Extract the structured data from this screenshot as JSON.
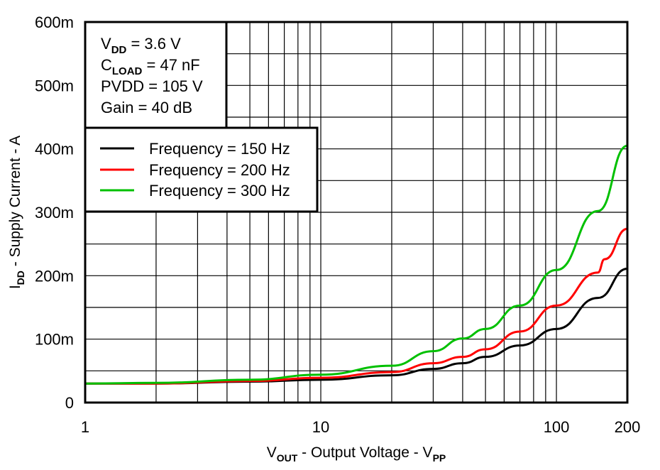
{
  "chart_data": {
    "type": "line",
    "xlabel": {
      "main": "V",
      "sub": "OUT",
      "rest": " - Output Voltage - V",
      "sub2": "PP"
    },
    "ylabel": {
      "main": "I",
      "sub": "DD",
      "rest": " - Supply Current - A"
    },
    "xscale": "log",
    "xlim": [
      1,
      200
    ],
    "ylim": [
      0,
      0.6
    ],
    "x_ticks": [
      {
        "v": 1,
        "label": "1"
      },
      {
        "v": 10,
        "label": "10"
      },
      {
        "v": 100,
        "label": "100"
      },
      {
        "v": 200,
        "label": "200"
      }
    ],
    "y_ticks": [
      {
        "v": 0,
        "label": "0"
      },
      {
        "v": 0.1,
        "label": "100m"
      },
      {
        "v": 0.2,
        "label": "200m"
      },
      {
        "v": 0.3,
        "label": "300m"
      },
      {
        "v": 0.4,
        "label": "400m"
      },
      {
        "v": 0.5,
        "label": "500m"
      },
      {
        "v": 0.6,
        "label": "600m"
      }
    ],
    "grid": true,
    "legend_position": "top-left",
    "conditions": [
      {
        "main": "V",
        "sub": "DD",
        "rest": " = 3.6 V"
      },
      {
        "main": "C",
        "sub": "LOAD",
        "rest": " = 47 nF"
      },
      {
        "main": "PVDD = 105 V",
        "sub": "",
        "rest": ""
      },
      {
        "main": "Gain = 40 dB",
        "sub": "",
        "rest": ""
      }
    ],
    "series": [
      {
        "name": "Frequency = 150 Hz",
        "color": "#000000",
        "x": [
          1,
          2,
          5,
          10,
          20,
          30,
          40,
          50,
          70,
          100,
          150,
          200
        ],
        "y": [
          0.03,
          0.03,
          0.033,
          0.036,
          0.043,
          0.053,
          0.062,
          0.072,
          0.09,
          0.116,
          0.165,
          0.211
        ]
      },
      {
        "name": "Frequency = 200 Hz",
        "color": "#ff0000",
        "x": [
          1,
          2,
          5,
          10,
          20,
          30,
          40,
          50,
          70,
          100,
          150,
          160,
          200
        ],
        "y": [
          0.03,
          0.03,
          0.034,
          0.039,
          0.048,
          0.062,
          0.072,
          0.084,
          0.112,
          0.153,
          0.205,
          0.226,
          0.274
        ]
      },
      {
        "name": "Frequency = 300 Hz",
        "color": "#00c000",
        "x": [
          1,
          2,
          5,
          10,
          20,
          30,
          40,
          50,
          70,
          100,
          150,
          200
        ],
        "y": [
          0.03,
          0.031,
          0.036,
          0.044,
          0.058,
          0.081,
          0.101,
          0.116,
          0.153,
          0.209,
          0.302,
          0.405
        ]
      }
    ]
  }
}
